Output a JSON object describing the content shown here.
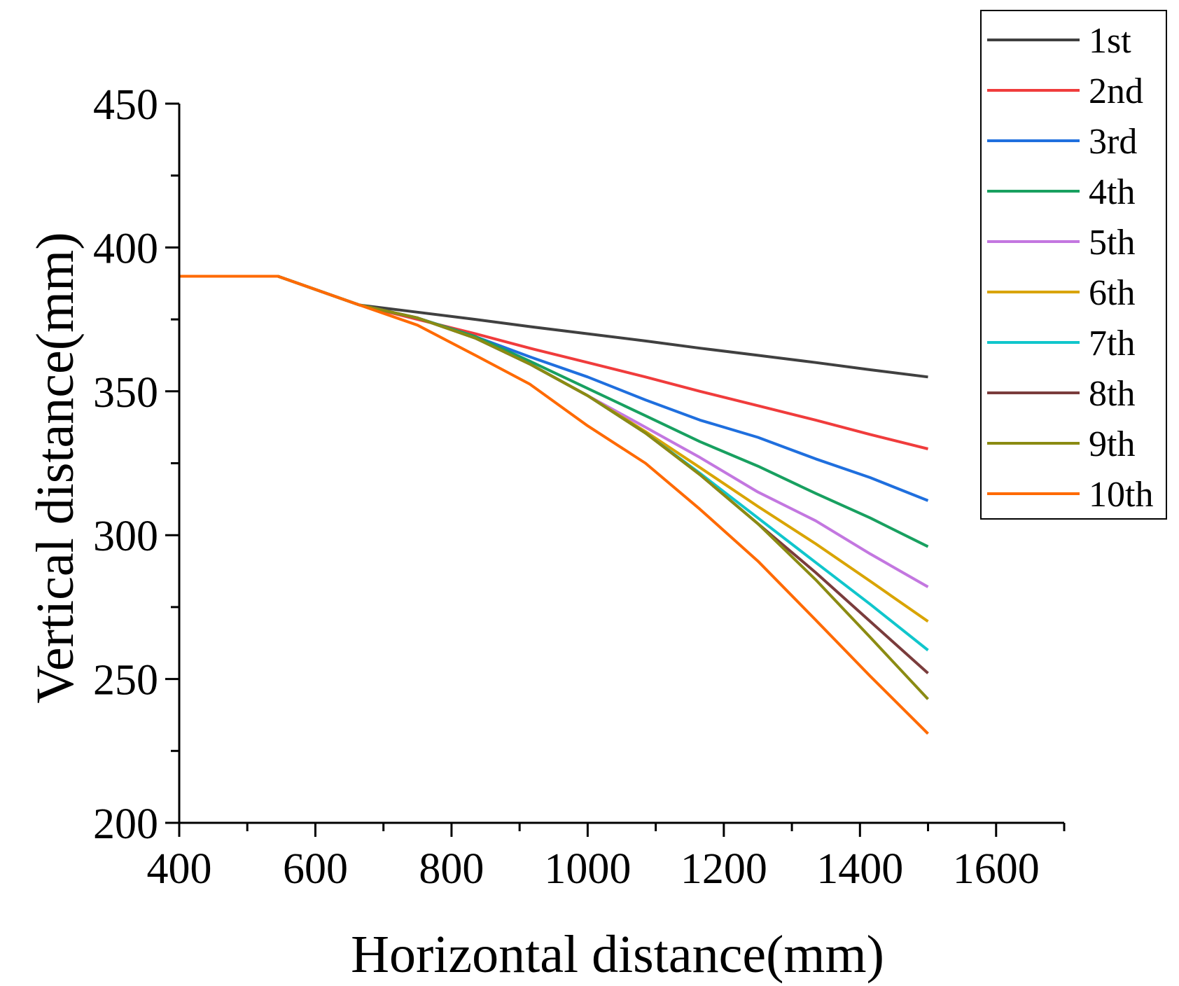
{
  "chart_data": {
    "type": "line",
    "title": "",
    "xlabel": "Horizontal distance(mm)",
    "ylabel": "Vertical distance(mm)",
    "xlim": [
      400,
      1700
    ],
    "ylim": [
      200,
      450
    ],
    "x_ticks": [
      400,
      600,
      800,
      1000,
      1200,
      1400,
      1600
    ],
    "y_ticks": [
      200,
      250,
      300,
      350,
      400,
      450
    ],
    "legend_position": "top-right",
    "grid": false,
    "series": [
      {
        "name": "1st",
        "color": "#404040",
        "points": [
          [
            400,
            390
          ],
          [
            545,
            390
          ],
          [
            665,
            380
          ],
          [
            750,
            377.5
          ],
          [
            835,
            375
          ],
          [
            915,
            372.5
          ],
          [
            1000,
            370
          ],
          [
            1085,
            367.5
          ],
          [
            1165,
            365
          ],
          [
            1250,
            362.5
          ],
          [
            1335,
            360
          ],
          [
            1415,
            357.5
          ],
          [
            1500,
            355
          ]
        ]
      },
      {
        "name": "2nd",
        "color": "#f03c3c",
        "points": [
          [
            400,
            390
          ],
          [
            545,
            390
          ],
          [
            665,
            380
          ],
          [
            750,
            375
          ],
          [
            835,
            370
          ],
          [
            915,
            365
          ],
          [
            1000,
            360
          ],
          [
            1085,
            355
          ],
          [
            1165,
            350
          ],
          [
            1250,
            345
          ],
          [
            1335,
            340
          ],
          [
            1415,
            335
          ],
          [
            1500,
            330
          ]
        ]
      },
      {
        "name": "3rd",
        "color": "#1f6fde",
        "points": [
          [
            400,
            390
          ],
          [
            545,
            390
          ],
          [
            665,
            380
          ],
          [
            750,
            375.5
          ],
          [
            835,
            369
          ],
          [
            915,
            362
          ],
          [
            1000,
            355
          ],
          [
            1085,
            347
          ],
          [
            1165,
            340
          ],
          [
            1250,
            334
          ],
          [
            1335,
            326.5
          ],
          [
            1415,
            320
          ],
          [
            1500,
            312
          ]
        ]
      },
      {
        "name": "4th",
        "color": "#18a060",
        "points": [
          [
            400,
            390
          ],
          [
            545,
            390
          ],
          [
            665,
            380
          ],
          [
            750,
            375.5
          ],
          [
            835,
            369
          ],
          [
            915,
            360.5
          ],
          [
            1000,
            351
          ],
          [
            1085,
            341.5
          ],
          [
            1165,
            332.5
          ],
          [
            1250,
            324
          ],
          [
            1335,
            314.5
          ],
          [
            1415,
            306
          ],
          [
            1500,
            296
          ]
        ]
      },
      {
        "name": "5th",
        "color": "#c377e0",
        "points": [
          [
            400,
            390
          ],
          [
            545,
            390
          ],
          [
            665,
            380
          ],
          [
            750,
            375.5
          ],
          [
            835,
            368.5
          ],
          [
            915,
            359.5
          ],
          [
            1000,
            348.5
          ],
          [
            1085,
            337.5
          ],
          [
            1165,
            327
          ],
          [
            1250,
            315
          ],
          [
            1335,
            305
          ],
          [
            1415,
            293.5
          ],
          [
            1500,
            282
          ]
        ]
      },
      {
        "name": "6th",
        "color": "#d9a400",
        "points": [
          [
            400,
            390
          ],
          [
            545,
            390
          ],
          [
            665,
            380
          ],
          [
            750,
            375.5
          ],
          [
            835,
            368.5
          ],
          [
            915,
            359.5
          ],
          [
            1000,
            348.5
          ],
          [
            1085,
            336
          ],
          [
            1165,
            323.5
          ],
          [
            1250,
            310
          ],
          [
            1335,
            297
          ],
          [
            1415,
            284
          ],
          [
            1500,
            270
          ]
        ]
      },
      {
        "name": "7th",
        "color": "#10c6cc",
        "points": [
          [
            400,
            390
          ],
          [
            545,
            390
          ],
          [
            665,
            380
          ],
          [
            750,
            375.5
          ],
          [
            835,
            368.5
          ],
          [
            915,
            359.5
          ],
          [
            1000,
            348.5
          ],
          [
            1085,
            335.5
          ],
          [
            1165,
            321.5
          ],
          [
            1250,
            306
          ],
          [
            1335,
            290.5
          ],
          [
            1415,
            276
          ],
          [
            1500,
            260
          ]
        ]
      },
      {
        "name": "8th",
        "color": "#7a3c3c",
        "points": [
          [
            400,
            390
          ],
          [
            545,
            390
          ],
          [
            665,
            380
          ],
          [
            750,
            375.5
          ],
          [
            835,
            368.5
          ],
          [
            915,
            359.5
          ],
          [
            1000,
            348.5
          ],
          [
            1085,
            335.5
          ],
          [
            1165,
            321
          ],
          [
            1250,
            304
          ],
          [
            1335,
            287
          ],
          [
            1415,
            270
          ],
          [
            1500,
            252
          ]
        ]
      },
      {
        "name": "9th",
        "color": "#8b8b12",
        "points": [
          [
            400,
            390
          ],
          [
            545,
            390
          ],
          [
            665,
            380
          ],
          [
            750,
            375.5
          ],
          [
            835,
            368.5
          ],
          [
            915,
            359.5
          ],
          [
            1000,
            348.5
          ],
          [
            1085,
            335.5
          ],
          [
            1165,
            321
          ],
          [
            1250,
            304
          ],
          [
            1335,
            284.5
          ],
          [
            1415,
            264.5
          ],
          [
            1500,
            243
          ]
        ]
      },
      {
        "name": "10th",
        "color": "#ff6a00",
        "points": [
          [
            400,
            390
          ],
          [
            545,
            390
          ],
          [
            665,
            380
          ],
          [
            750,
            373
          ],
          [
            835,
            362.5
          ],
          [
            915,
            352.5
          ],
          [
            1000,
            338
          ],
          [
            1085,
            325
          ],
          [
            1165,
            309
          ],
          [
            1250,
            291
          ],
          [
            1335,
            270.5
          ],
          [
            1415,
            251
          ],
          [
            1500,
            231
          ]
        ]
      }
    ]
  }
}
